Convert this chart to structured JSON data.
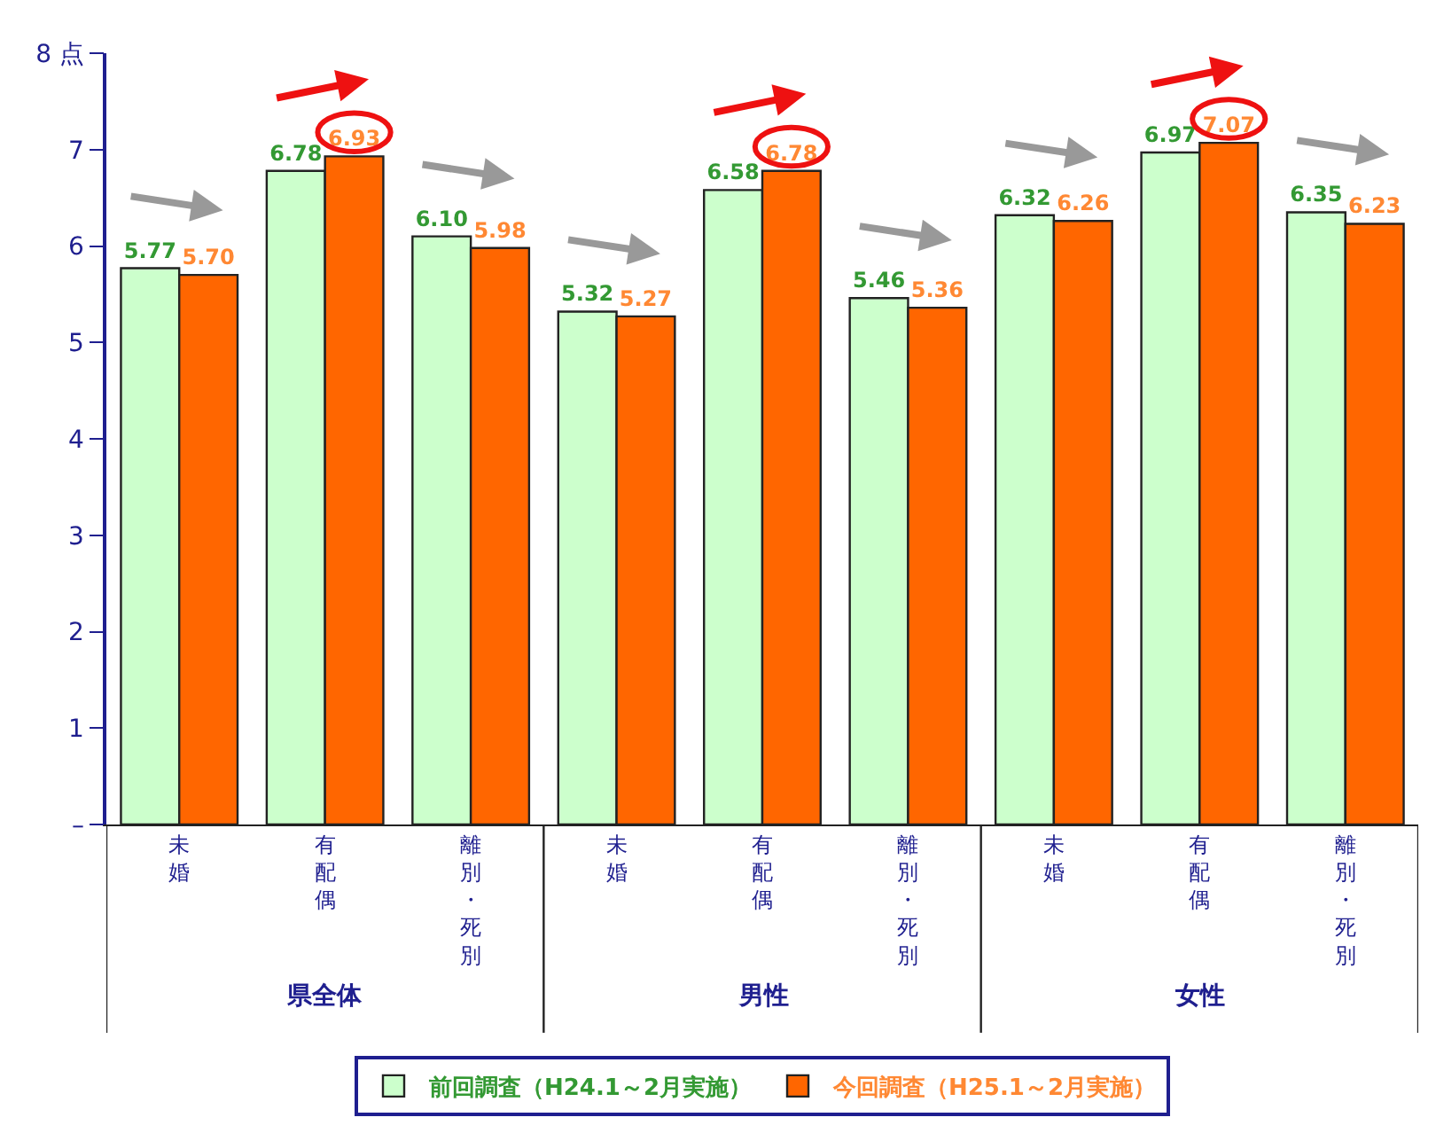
{
  "chart_data": {
    "type": "bar",
    "categories": [
      "未婚",
      "有配偶",
      "離別・死別",
      "未婚",
      "有配偶",
      "離別・死別",
      "未婚",
      "有配偶",
      "離別・死別"
    ],
    "series": [
      {
        "name": "前回調査（H24.1～2月実施）",
        "color": "#ccffcc",
        "values": [
          5.77,
          6.78,
          6.1,
          5.32,
          6.58,
          5.46,
          6.32,
          6.97,
          6.35
        ],
        "value_labels": [
          "5.77",
          "6.78",
          "6.10",
          "5.32",
          "6.58",
          "5.46",
          "6.32",
          "6.97",
          "6.35"
        ]
      },
      {
        "name": "今回調査（H25.1～2月実施）",
        "color": "#ff6600",
        "values": [
          5.7,
          6.93,
          5.98,
          5.27,
          6.78,
          5.36,
          6.26,
          7.07,
          6.23
        ],
        "value_labels": [
          "5.70",
          "6.93",
          "5.98",
          "5.27",
          "6.78",
          "5.36",
          "6.26",
          "7.07",
          "6.23"
        ]
      }
    ],
    "annotations": [
      "県全体",
      "男性",
      "女性"
    ],
    "ylim": [
      0,
      8
    ],
    "yticks": [
      {
        "value": 0,
        "label": "–"
      },
      1,
      2,
      3,
      4,
      5,
      6,
      7,
      {
        "value": 8,
        "label": "8 点"
      }
    ],
    "legend": "bottom"
  }
}
